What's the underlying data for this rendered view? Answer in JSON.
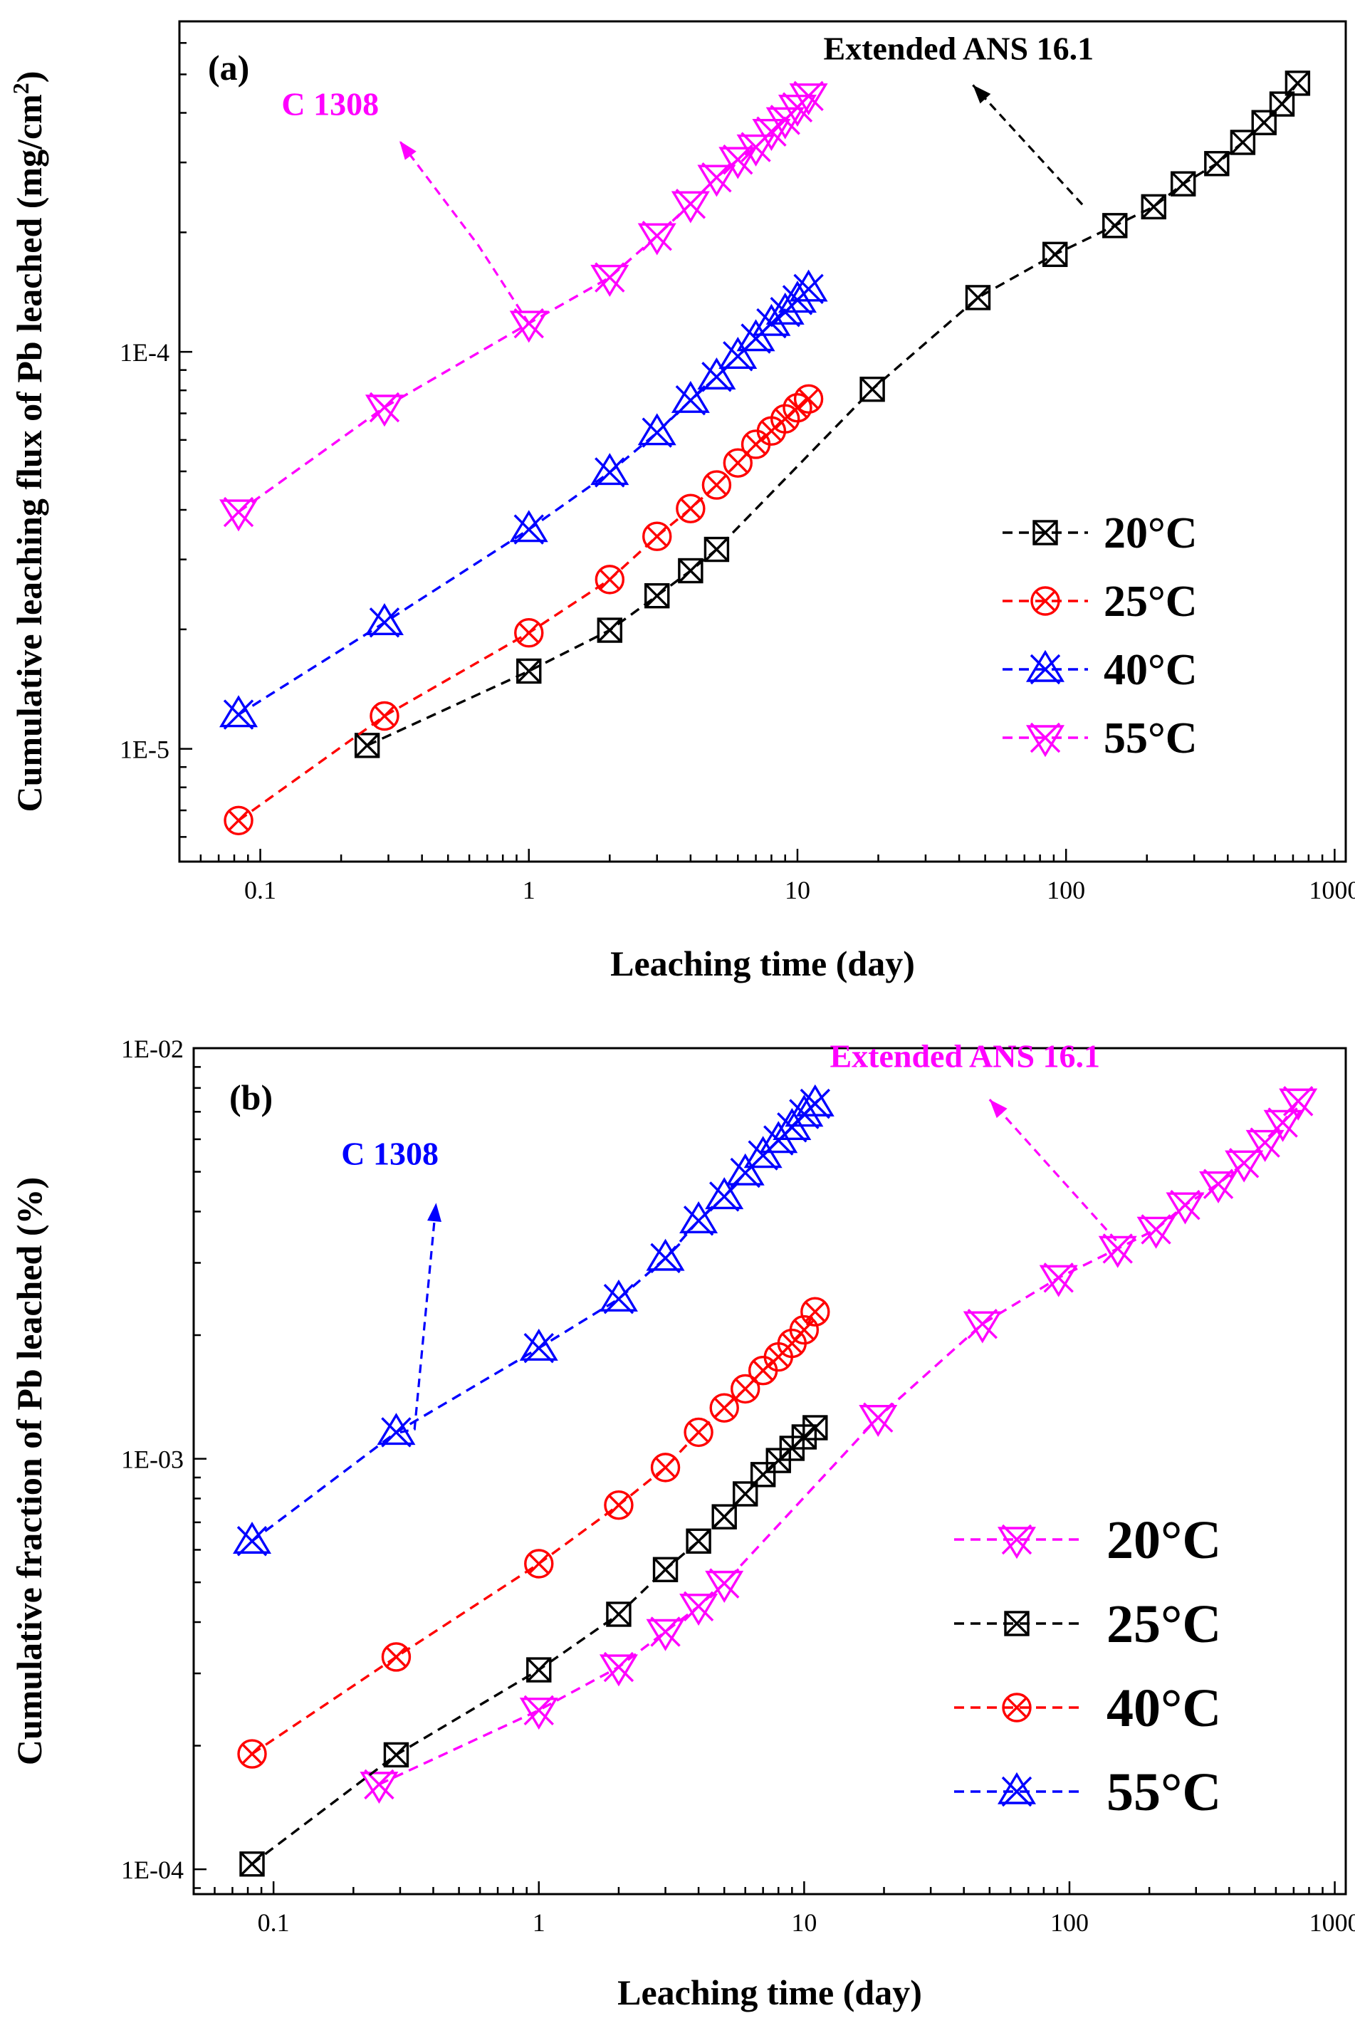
{
  "colors": {
    "black": "#000000",
    "red": "#ff0000",
    "blue": "#0000ff",
    "magenta": "#ff00ff"
  },
  "chart_data": [
    {
      "type": "line",
      "panel_label": "(a)",
      "xlabel": "Leaching time (day)",
      "ylabel_main": "Cumulative leaching flux of Pb leached (mg/cm",
      "ylabel_sup": "2",
      "ylabel_end": ")",
      "xscale": "log",
      "yscale": "log",
      "xlim": [
        0.05,
        1100
      ],
      "ylim": [
        5.2e-06,
        0.00068
      ],
      "x_ticks": [
        {
          "value": 0.1,
          "label": "0.1"
        },
        {
          "value": 1,
          "label": "1"
        },
        {
          "value": 10,
          "label": "10"
        },
        {
          "value": 100,
          "label": "100"
        },
        {
          "value": 1000,
          "label": "1000"
        }
      ],
      "y_ticks": [
        {
          "value": 1e-05,
          "label": "1E-5"
        },
        {
          "value": 0.0001,
          "label": "1E-4"
        }
      ],
      "legend_position": "bottom-right",
      "legend_font": 62,
      "series": [
        {
          "name": "20°C",
          "color": "#000000",
          "marker": "square-x",
          "x": [
            0.25,
            1,
            2,
            3,
            4,
            5,
            19,
            47,
            91,
            152,
            212,
            273,
            364,
            455,
            546,
            637,
            728
          ],
          "y": [
            1.02e-05,
            1.57e-05,
            1.99e-05,
            2.43e-05,
            2.81e-05,
            3.18e-05,
            8.05e-05,
            0.000137,
            0.000176,
            0.000208,
            0.000232,
            0.000265,
            0.000298,
            0.000337,
            0.000378,
            0.000421,
            0.000475
          ]
        },
        {
          "name": "25°C",
          "color": "#ff0000",
          "marker": "circle-x",
          "x": [
            0.083,
            0.29,
            1,
            2,
            3,
            4,
            5,
            6,
            7,
            8,
            9,
            10,
            11
          ],
          "y": [
            6.6e-06,
            1.21e-05,
            1.96e-05,
            2.67e-05,
            3.43e-05,
            4.03e-05,
            4.62e-05,
            5.25e-05,
            5.85e-05,
            6.32e-05,
            6.78e-05,
            7.23e-05,
            7.61e-05
          ]
        },
        {
          "name": "40°C",
          "color": "#0000ff",
          "marker": "star-x",
          "x": [
            0.083,
            0.29,
            1,
            2,
            3,
            4,
            5,
            6,
            7,
            8,
            9,
            10,
            11
          ],
          "y": [
            1.22e-05,
            2.08e-05,
            3.57e-05,
            4.97e-05,
            6.26e-05,
            7.55e-05,
            8.65e-05,
            9.75e-05,
            0.000108,
            0.000118,
            0.000126,
            0.000135,
            0.000144
          ]
        },
        {
          "name": "55°C",
          "color": "#ff00ff",
          "marker": "tri-x",
          "x": [
            0.083,
            0.29,
            1,
            2,
            3,
            4,
            5,
            6,
            7,
            8,
            9,
            10,
            11
          ],
          "y": [
            3.95e-05,
            7.25e-05,
            0.000118,
            0.000154,
            0.000196,
            0.000236,
            0.000275,
            0.000305,
            0.000328,
            0.000359,
            0.000384,
            0.000413,
            0.000441
          ]
        }
      ],
      "annotations": [
        {
          "text": "C 1308",
          "color": "#ff00ff",
          "from": [
            1.0,
            0.000118
          ],
          "elbow": [
            0.65,
            0.000185
          ],
          "tip": [
            0.33,
            0.00034
          ],
          "label_at": [
            0.12,
            0.000395
          ]
        },
        {
          "text": "Extended ANS 16.1",
          "color": "#000000",
          "from": [
            115,
            0.000235
          ],
          "elbow": [
            115,
            0.000235
          ],
          "tip": [
            45,
            0.00047
          ],
          "label_at": [
            12.5,
            0.000545
          ]
        }
      ]
    },
    {
      "type": "line",
      "panel_label": "(b)",
      "xlabel": "Leaching time (day)",
      "ylabel_main": "Cumulative fraction of Pb leached (%)",
      "ylabel_sup": "",
      "ylabel_end": "",
      "xscale": "log",
      "yscale": "log",
      "xlim": [
        0.05,
        1100
      ],
      "ylim": [
        8.7e-05,
        0.01
      ],
      "x_ticks": [
        {
          "value": 0.1,
          "label": "0.1"
        },
        {
          "value": 1,
          "label": "1"
        },
        {
          "value": 10,
          "label": "10"
        },
        {
          "value": 100,
          "label": "100"
        },
        {
          "value": 1000,
          "label": "1000"
        }
      ],
      "y_ticks": [
        {
          "value": 0.0001,
          "label": "1E-04"
        },
        {
          "value": 0.001,
          "label": "1E-03"
        },
        {
          "value": 0.01,
          "label": "1E-02"
        }
      ],
      "legend_position": "bottom-right",
      "legend_font": 76,
      "series": [
        {
          "name": "20°C",
          "color": "#ff00ff",
          "marker": "tri-x",
          "x": [
            0.25,
            1,
            2,
            3,
            4,
            5,
            19,
            47,
            91,
            152,
            212,
            273,
            364,
            455,
            546,
            637,
            728
          ],
          "y": [
            0.000161,
            0.000244,
            0.000311,
            0.000379,
            0.000437,
            0.000497,
            0.00126,
            0.00213,
            0.00276,
            0.00325,
            0.00362,
            0.00415,
            0.00467,
            0.00525,
            0.00589,
            0.00659,
            0.00743
          ]
        },
        {
          "name": "25°C",
          "color": "#000000",
          "marker": "square-x",
          "x": [
            0.083,
            0.29,
            1,
            2,
            3,
            4,
            5,
            6,
            7,
            8,
            9,
            10,
            11
          ],
          "y": [
            0.000103,
            0.00019,
            0.000306,
            0.000418,
            0.000537,
            0.00063,
            0.000722,
            0.000821,
            0.000915,
            0.00099,
            0.00106,
            0.00113,
            0.00119
          ]
        },
        {
          "name": "40°C",
          "color": "#ff0000",
          "marker": "circle-x",
          "x": [
            0.083,
            0.29,
            1,
            2,
            3,
            4,
            5,
            6,
            7,
            8,
            9,
            10,
            11
          ],
          "y": [
            0.000191,
            0.000329,
            0.000555,
            0.000771,
            0.000952,
            0.00116,
            0.00133,
            0.00148,
            0.00164,
            0.00177,
            0.00191,
            0.00206,
            0.00228
          ]
        },
        {
          "name": "55°C",
          "color": "#0000ff",
          "marker": "star-x",
          "x": [
            0.083,
            0.29,
            1,
            2,
            3,
            4,
            5,
            6,
            7,
            8,
            9,
            10,
            11
          ],
          "y": [
            0.00063,
            0.00116,
            0.00186,
            0.00245,
            0.00308,
            0.0038,
            0.00435,
            0.00497,
            0.00548,
            0.00596,
            0.00641,
            0.00691,
            0.00732
          ]
        }
      ],
      "annotations": [
        {
          "text": "C 1308",
          "color": "#0000ff",
          "from": [
            0.3,
            0.00116
          ],
          "elbow": [
            0.34,
            0.00118
          ],
          "tip": [
            0.41,
            0.0042
          ],
          "label_at": [
            0.18,
            0.0052
          ]
        },
        {
          "text": "Extended ANS 16.1",
          "color": "#ff00ff",
          "from": [
            150,
            0.0034
          ],
          "elbow": [
            150,
            0.0034
          ],
          "tip": [
            50,
            0.0075
          ],
          "label_at": [
            12.5,
            0.009
          ]
        }
      ]
    }
  ]
}
